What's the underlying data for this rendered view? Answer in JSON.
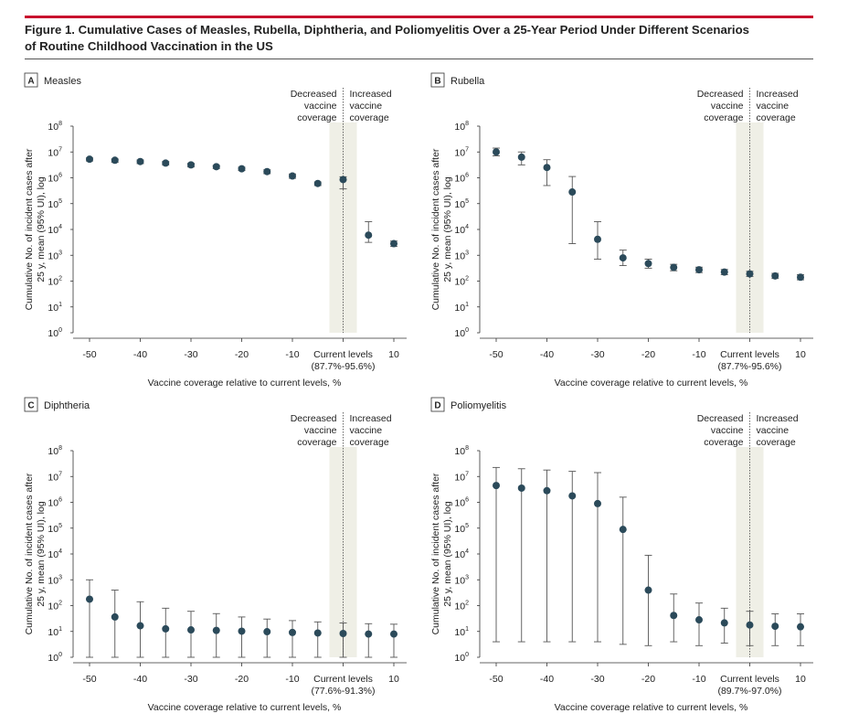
{
  "figure": {
    "title_line1": "Figure 1. Cumulative Cases of Measles, Rubella, Diphtheria, and Poliomyelitis Over a 25-Year Period Under Different Scenarios",
    "title_line2": "of Routine Childhood Vaccination in the US"
  },
  "colors": {
    "accent": "#c8102e",
    "marker": "#2b4a5a",
    "shade": "#efefe6",
    "errorbar": "#555555"
  },
  "chart_data": [
    {
      "type": "scatter",
      "panel": "A",
      "title": "Measles",
      "x": [
        -50,
        -45,
        -40,
        -35,
        -30,
        -25,
        -20,
        -15,
        -10,
        -5,
        0,
        5,
        10
      ],
      "y_exponent": [
        6.72,
        6.68,
        6.63,
        6.57,
        6.5,
        6.43,
        6.35,
        6.24,
        6.07,
        5.78,
        5.93,
        3.78,
        3.45
      ],
      "y_low_exponent": [
        6.65,
        6.6,
        6.55,
        6.5,
        6.42,
        6.36,
        6.28,
        6.16,
        5.98,
        5.7,
        5.57,
        3.5,
        3.34
      ],
      "y_high_exponent": [
        6.77,
        6.73,
        6.69,
        6.63,
        6.56,
        6.48,
        6.41,
        6.31,
        6.15,
        5.84,
        6.04,
        4.3,
        3.55
      ],
      "xlabel": "Vaccine coverage relative to current levels, %",
      "ylabel_line1": "Cumulative No. of incident cases after",
      "ylabel_line2": "25 y, mean (95% UI), log",
      "xticks": [
        "-50",
        "-40",
        "-30",
        "-20",
        "-10",
        "10"
      ],
      "current_label": "Current levels",
      "current_range": "(87.7%-95.6%)",
      "zone_decreased": [
        "Decreased",
        "vaccine",
        "coverage"
      ],
      "zone_increased": [
        "Increased",
        "vaccine",
        "coverage"
      ],
      "yticks": [
        "10",
        "10",
        "10",
        "10",
        "10",
        "10",
        "10",
        "10",
        "10"
      ],
      "ytick_exponents": [
        "0",
        "1",
        "2",
        "3",
        "4",
        "5",
        "6",
        "7",
        "8"
      ],
      "ylim": [
        0,
        8
      ],
      "xlim": [
        -53,
        12
      ]
    },
    {
      "type": "scatter",
      "panel": "B",
      "title": "Rubella",
      "x": [
        -50,
        -45,
        -40,
        -35,
        -30,
        -25,
        -20,
        -15,
        -10,
        -5,
        0,
        5,
        10
      ],
      "y_exponent": [
        7.0,
        6.8,
        6.4,
        5.45,
        3.62,
        2.9,
        2.68,
        2.53,
        2.44,
        2.35,
        2.28,
        2.2,
        2.15
      ],
      "y_low_exponent": [
        6.85,
        6.5,
        5.7,
        3.45,
        2.85,
        2.6,
        2.5,
        2.4,
        2.33,
        2.25,
        2.18,
        2.1,
        2.05
      ],
      "y_high_exponent": [
        7.15,
        7.0,
        6.7,
        6.05,
        4.3,
        3.2,
        2.85,
        2.65,
        2.54,
        2.45,
        2.38,
        2.3,
        2.25
      ],
      "xlabel": "Vaccine coverage relative to current levels, %",
      "ylabel_line1": "Cumulative No. of incident cases after",
      "ylabel_line2": "25 y, mean (95% UI), log",
      "xticks": [
        "-50",
        "-40",
        "-30",
        "-20",
        "-10",
        "10"
      ],
      "current_label": "Current levels",
      "current_range": "(87.7%-95.6%)",
      "zone_decreased": [
        "Decreased",
        "vaccine",
        "coverage"
      ],
      "zone_increased": [
        "Increased",
        "vaccine",
        "coverage"
      ],
      "yticks": [
        "10",
        "10",
        "10",
        "10",
        "10",
        "10",
        "10",
        "10",
        "10"
      ],
      "ytick_exponents": [
        "0",
        "1",
        "2",
        "3",
        "4",
        "5",
        "6",
        "7",
        "8"
      ],
      "ylim": [
        0,
        8
      ],
      "xlim": [
        -53,
        12
      ]
    },
    {
      "type": "scatter",
      "panel": "C",
      "title": "Diphtheria",
      "x": [
        -50,
        -45,
        -40,
        -35,
        -30,
        -25,
        -20,
        -15,
        -10,
        -5,
        0,
        5,
        10
      ],
      "y_exponent": [
        2.25,
        1.56,
        1.22,
        1.1,
        1.06,
        1.04,
        1.01,
        0.99,
        0.96,
        0.94,
        0.92,
        0.9,
        0.9
      ],
      "y_low_exponent": [
        0,
        0,
        0,
        0,
        0,
        0,
        0,
        0,
        0,
        0,
        0,
        0,
        0
      ],
      "y_high_exponent": [
        3.0,
        2.6,
        2.15,
        1.9,
        1.78,
        1.69,
        1.56,
        1.48,
        1.42,
        1.37,
        1.33,
        1.3,
        1.28
      ],
      "xlabel": "Vaccine coverage relative to current levels, %",
      "ylabel_line1": "Cumulative No. of incident cases after",
      "ylabel_line2": "25 y, mean (95% UI), log",
      "xticks": [
        "-50",
        "-40",
        "-30",
        "-20",
        "-10",
        "10"
      ],
      "current_label": "Current levels",
      "current_range": "(77.6%-91.3%)",
      "zone_decreased": [
        "Decreased",
        "vaccine",
        "coverage"
      ],
      "zone_increased": [
        "Increased",
        "vaccine",
        "coverage"
      ],
      "yticks": [
        "10",
        "10",
        "10",
        "10",
        "10",
        "10",
        "10",
        "10",
        "10"
      ],
      "ytick_exponents": [
        "0",
        "1",
        "2",
        "3",
        "4",
        "5",
        "6",
        "7",
        "8"
      ],
      "ylim": [
        0,
        8
      ],
      "xlim": [
        -53,
        12
      ]
    },
    {
      "type": "scatter",
      "panel": "D",
      "title": "Poliomyelitis",
      "x": [
        -50,
        -45,
        -40,
        -35,
        -30,
        -25,
        -20,
        -15,
        -10,
        -5,
        0,
        5,
        10
      ],
      "y_exponent": [
        6.65,
        6.55,
        6.45,
        6.25,
        5.95,
        4.95,
        2.6,
        1.62,
        1.45,
        1.33,
        1.25,
        1.2,
        1.18
      ],
      "y_low_exponent": [
        0.6,
        0.6,
        0.6,
        0.6,
        0.6,
        0.5,
        0.45,
        0.6,
        0.45,
        0.55,
        0.45,
        0.45,
        0.45
      ],
      "y_high_exponent": [
        7.35,
        7.3,
        7.25,
        7.2,
        7.15,
        6.2,
        3.95,
        2.45,
        2.1,
        1.9,
        1.78,
        1.68,
        1.68
      ],
      "xlabel": "Vaccine coverage relative to current levels, %",
      "ylabel_line1": "Cumulative No. of incident cases after",
      "ylabel_line2": "25 y, mean (95% UI), log",
      "xticks": [
        "-50",
        "-40",
        "-30",
        "-20",
        "-10",
        "10"
      ],
      "current_label": "Current levels",
      "current_range": "(89.7%-97.0%)",
      "zone_decreased": [
        "Decreased",
        "vaccine",
        "coverage"
      ],
      "zone_increased": [
        "Increased",
        "vaccine",
        "coverage"
      ],
      "yticks": [
        "10",
        "10",
        "10",
        "10",
        "10",
        "10",
        "10",
        "10",
        "10"
      ],
      "ytick_exponents": [
        "0",
        "1",
        "2",
        "3",
        "4",
        "5",
        "6",
        "7",
        "8"
      ],
      "ylim": [
        0,
        8
      ],
      "xlim": [
        -53,
        12
      ]
    }
  ]
}
